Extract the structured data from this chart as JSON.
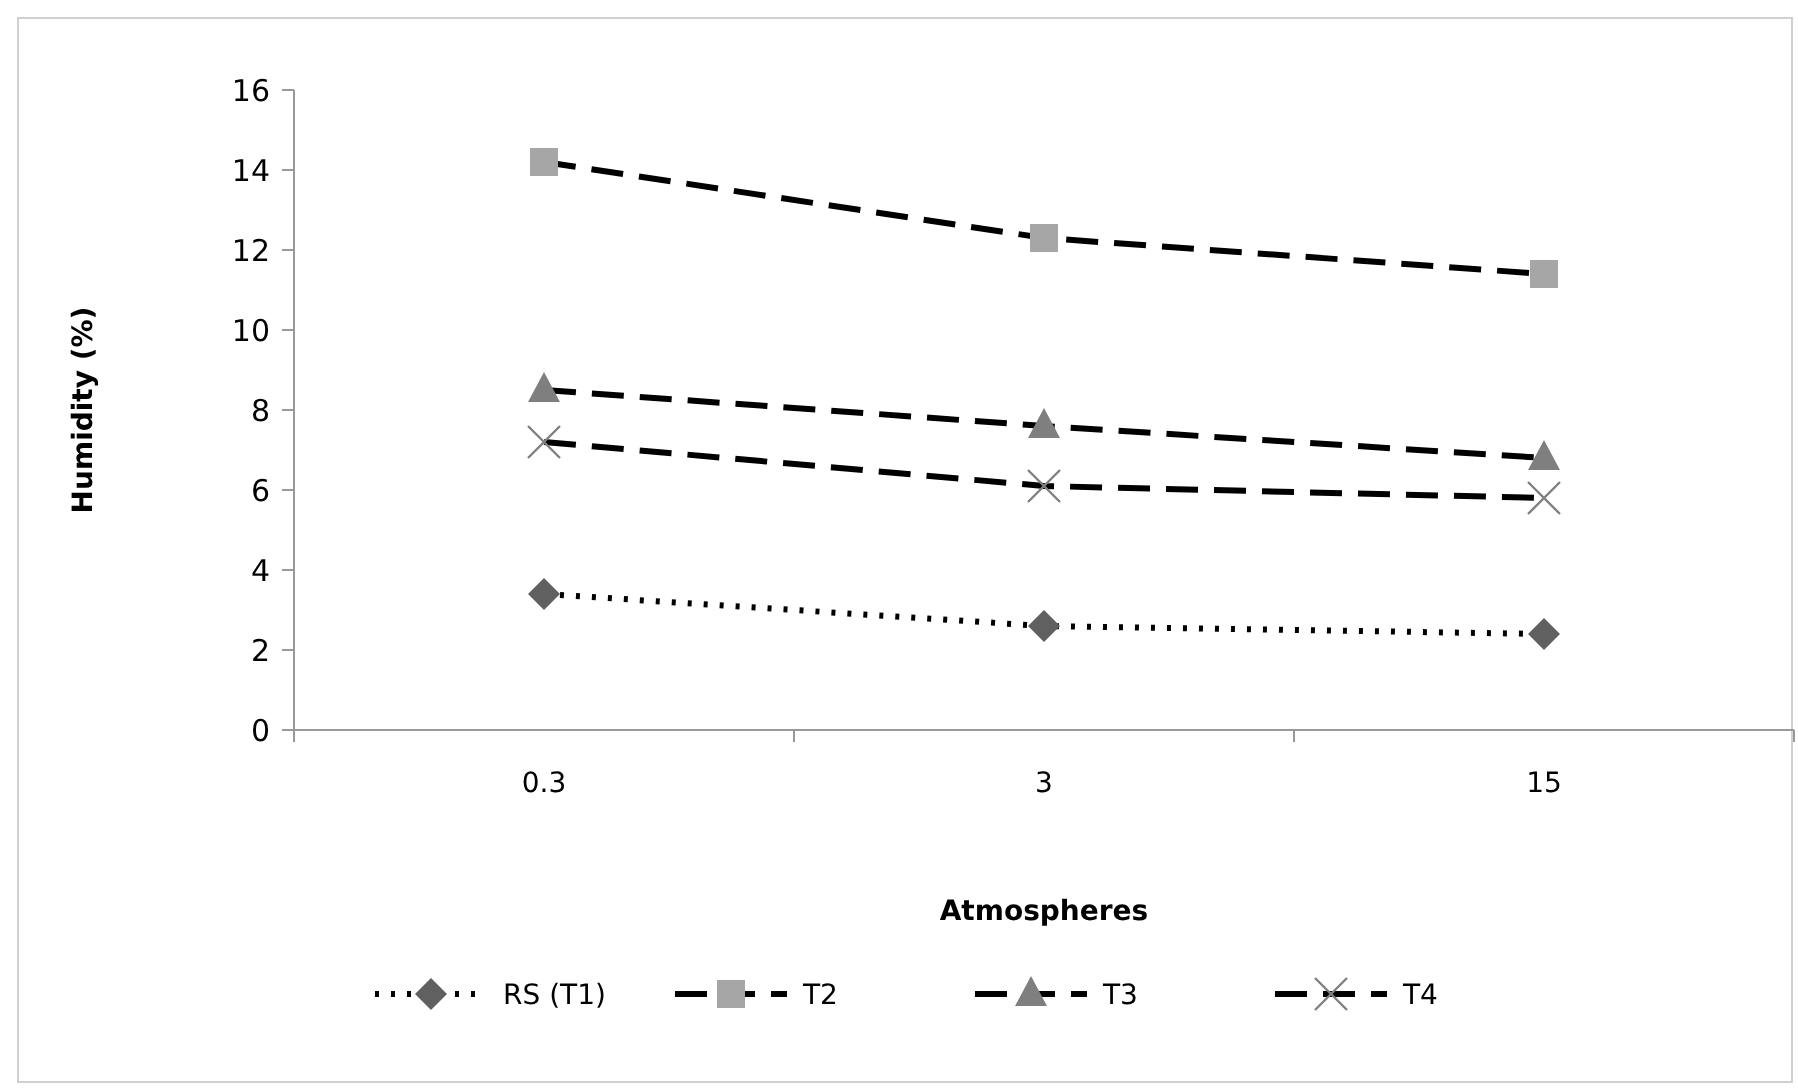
{
  "chart_data": {
    "type": "line",
    "xlabel": "Atmospheres",
    "ylabel": "Humidity  (%)",
    "categories": [
      "0.3",
      "3",
      "15"
    ],
    "ylim": [
      0,
      16
    ],
    "yticks": [
      0,
      2,
      4,
      6,
      8,
      10,
      12,
      14,
      16
    ],
    "grid": false,
    "legend": "bottom",
    "series": [
      {
        "name": "RS (T1)",
        "color": "#606060",
        "marker": "diamond",
        "line_style": "dotted",
        "values": [
          3.4,
          2.6,
          2.4
        ]
      },
      {
        "name": "T2",
        "color": "#a6a6a6",
        "marker": "square",
        "line_style": "dashed",
        "values": [
          14.2,
          12.3,
          11.4
        ]
      },
      {
        "name": "T3",
        "color": "#7f7f7f",
        "marker": "triangle",
        "line_style": "dashed",
        "values": [
          8.5,
          7.6,
          6.8
        ]
      },
      {
        "name": "T4",
        "color": "#808080",
        "marker": "cross",
        "line_style": "dashed",
        "values": [
          7.2,
          6.1,
          5.8
        ]
      }
    ]
  }
}
